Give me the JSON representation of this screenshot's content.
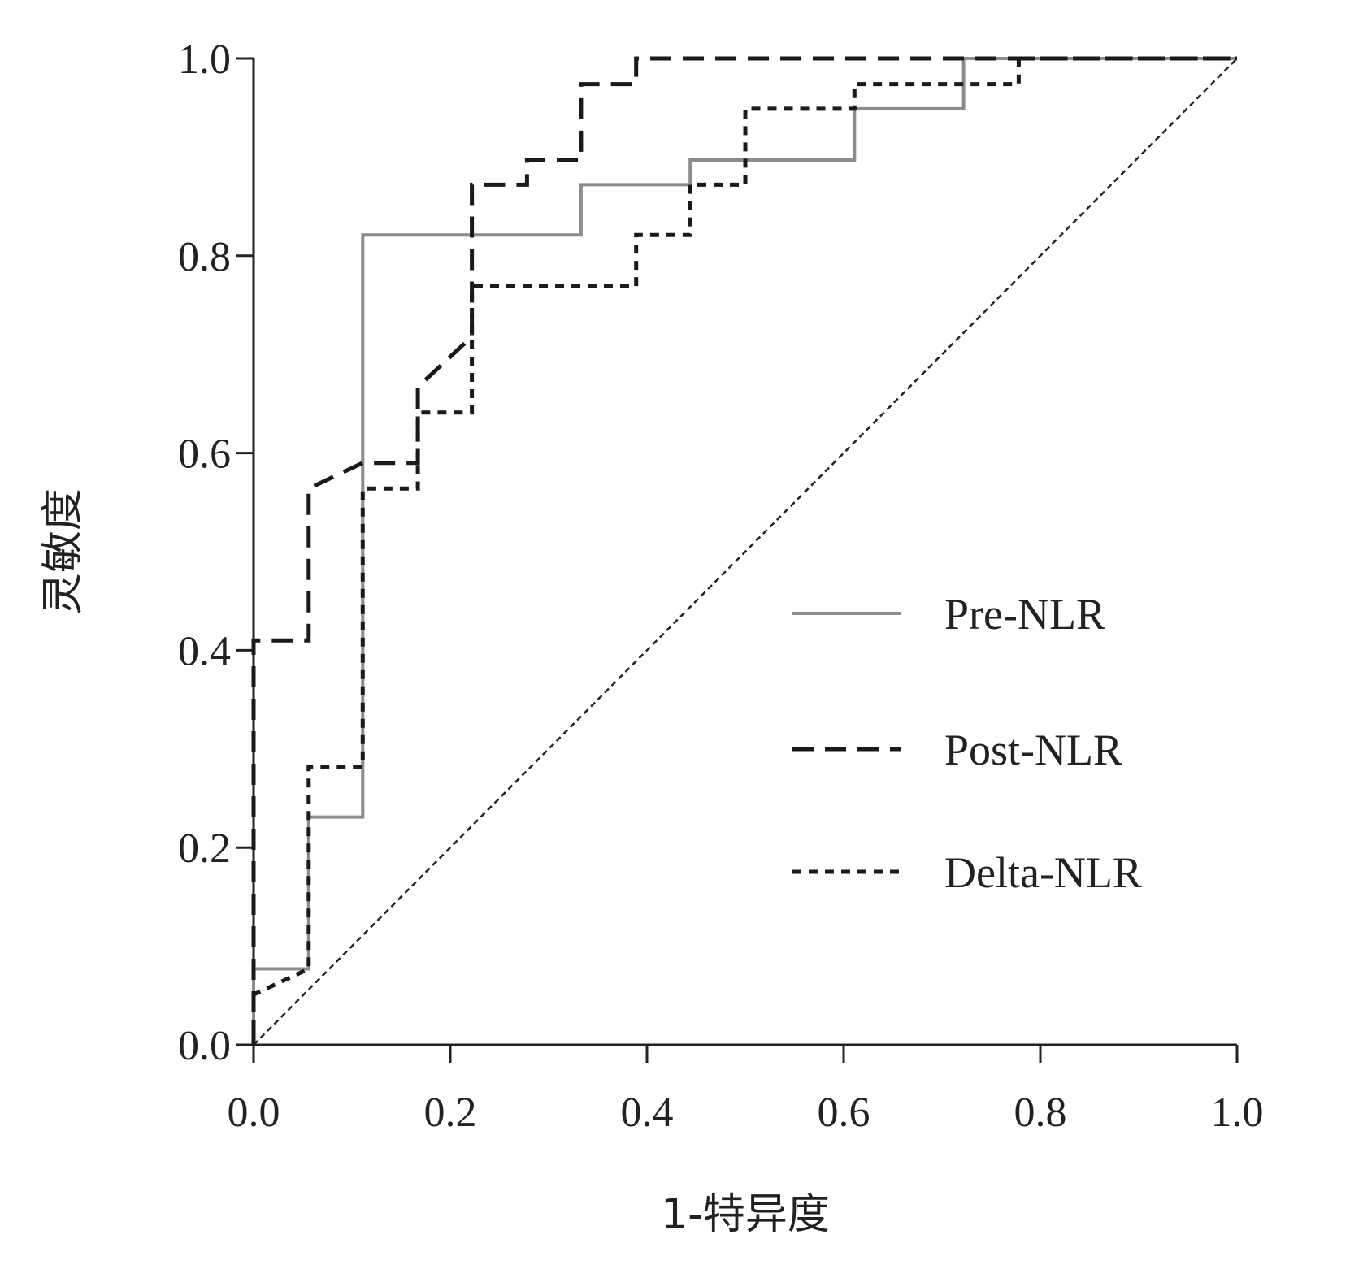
{
  "chart_data": {
    "type": "line",
    "title": "",
    "xlabel": "1-特异度",
    "ylabel": "灵敏度",
    "xlim": [
      0,
      1
    ],
    "ylim": [
      0,
      1
    ],
    "x_ticks": [
      "0.0",
      "0.2",
      "0.4",
      "0.6",
      "0.8",
      "1.0"
    ],
    "y_ticks": [
      "0.0",
      "0.2",
      "0.4",
      "0.6",
      "0.8",
      "1.0"
    ],
    "grid": false,
    "legend_position": "lower-right",
    "reference_line": {
      "points": [
        [
          0,
          0
        ],
        [
          1,
          1
        ]
      ],
      "color": "#222222"
    },
    "series": [
      {
        "name": "Pre-NLR",
        "color": "#8c8c8c",
        "style": "solid",
        "points": [
          [
            0,
            0
          ],
          [
            0,
            0.077
          ],
          [
            0.056,
            0.077
          ],
          [
            0.056,
            0.231
          ],
          [
            0.111,
            0.231
          ],
          [
            0.111,
            0.821
          ],
          [
            0.333,
            0.821
          ],
          [
            0.333,
            0.872
          ],
          [
            0.444,
            0.872
          ],
          [
            0.444,
            0.897
          ],
          [
            0.611,
            0.897
          ],
          [
            0.611,
            0.949
          ],
          [
            0.722,
            0.949
          ],
          [
            0.722,
            1.0
          ],
          [
            1.0,
            1.0
          ]
        ]
      },
      {
        "name": "Post-NLR",
        "color": "#1a1a1a",
        "style": "dashed",
        "points": [
          [
            0,
            0
          ],
          [
            0,
            0.41
          ],
          [
            0.056,
            0.41
          ],
          [
            0.056,
            0.564
          ],
          [
            0.111,
            0.59
          ],
          [
            0.167,
            0.59
          ],
          [
            0.167,
            0.667
          ],
          [
            0.222,
            0.718
          ],
          [
            0.222,
            0.872
          ],
          [
            0.278,
            0.872
          ],
          [
            0.278,
            0.897
          ],
          [
            0.333,
            0.897
          ],
          [
            0.333,
            0.974
          ],
          [
            0.389,
            0.974
          ],
          [
            0.389,
            1.0
          ],
          [
            1.0,
            1.0
          ]
        ]
      },
      {
        "name": "Delta-NLR",
        "color": "#1a1a1a",
        "style": "dotted",
        "points": [
          [
            0,
            0
          ],
          [
            0,
            0.051
          ],
          [
            0.056,
            0.077
          ],
          [
            0.056,
            0.282
          ],
          [
            0.111,
            0.282
          ],
          [
            0.111,
            0.564
          ],
          [
            0.167,
            0.564
          ],
          [
            0.167,
            0.641
          ],
          [
            0.222,
            0.641
          ],
          [
            0.222,
            0.769
          ],
          [
            0.389,
            0.769
          ],
          [
            0.389,
            0.821
          ],
          [
            0.444,
            0.821
          ],
          [
            0.444,
            0.872
          ],
          [
            0.5,
            0.872
          ],
          [
            0.5,
            0.949
          ],
          [
            0.611,
            0.949
          ],
          [
            0.611,
            0.974
          ],
          [
            0.778,
            0.974
          ],
          [
            0.778,
            1.0
          ],
          [
            1.0,
            1.0
          ]
        ]
      }
    ]
  }
}
